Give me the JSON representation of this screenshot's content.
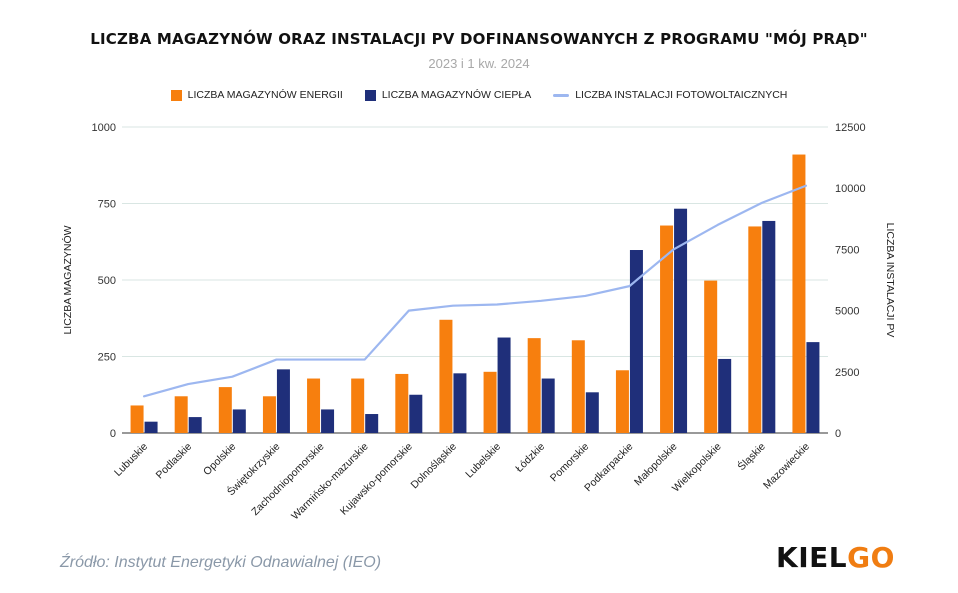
{
  "chart_data": {
    "type": "bar",
    "title": "LICZBA MAGAZYNÓW ORAZ INSTALACJI PV DOFINANSOWANYCH Z PROGRAMU \"MÓJ PRĄD\"",
    "subtitle": "2023 i 1 kw. 2024",
    "ylabel_left": "LICZBA MAGAZYNÓW",
    "ylabel_right": "LICZBA INSTALACJI PV",
    "ylim_left": [
      0,
      1000
    ],
    "ylim_right": [
      0,
      12500
    ],
    "yticks_left": [
      "0",
      "250",
      "500",
      "750",
      "1000"
    ],
    "yticks_right": [
      "0",
      "2500",
      "5000",
      "7500",
      "10000",
      "12500"
    ],
    "legend_position": "top",
    "grid": true,
    "categories": [
      "Lubuskie",
      "Podlaskie",
      "Opolskie",
      "Świętokrzyskie",
      "Zachodniopomorskie",
      "Warmińsko-mazurskie",
      "Kujawsko-pomorskie",
      "Dolnośląskie",
      "Lubelskie",
      "Łódzkie",
      "Pomorskie",
      "Podkarpackie",
      "Małopolskie",
      "Wielkopolskie",
      "Śląskie",
      "Mazowieckie"
    ],
    "series": [
      {
        "name": "LICZBA MAGAZYNÓW ENERGII",
        "type": "bar",
        "axis": "left",
        "color": "#f77f0e",
        "values": [
          90,
          120,
          150,
          120,
          178,
          178,
          193,
          370,
          200,
          310,
          303,
          205,
          678,
          498,
          675,
          910
        ]
      },
      {
        "name": "LICZBA MAGAZYNÓW CIEPŁA",
        "type": "bar",
        "axis": "left",
        "color": "#1f2f7a",
        "values": [
          37,
          52,
          77,
          208,
          77,
          62,
          125,
          195,
          312,
          178,
          133,
          598,
          733,
          242,
          693,
          297
        ]
      },
      {
        "name": "LICZBA INSTALACJI FOTOWOLTAICZNYCH",
        "type": "line",
        "axis": "right",
        "color": "#9db7f0",
        "values": [
          1500,
          2000,
          2300,
          3000,
          3000,
          3000,
          5000,
          5200,
          5250,
          5400,
          5600,
          6000,
          7500,
          8500,
          9400,
          10100
        ]
      }
    ]
  },
  "footer": {
    "source": "Źródło: Instytut Energetyki Odnawialnej (IEO)",
    "brand_main": "KIEL",
    "brand_accent": "GO"
  }
}
